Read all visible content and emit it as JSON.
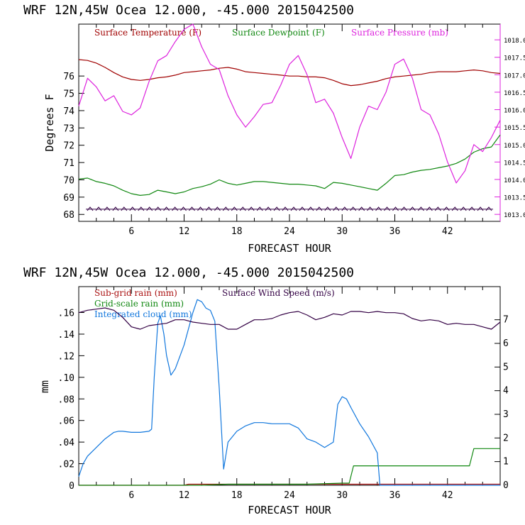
{
  "colors": {
    "temperature": "#a00000",
    "dewpoint": "#118811",
    "pressure": "#dd22dd",
    "wind_barbs": "#330044",
    "subgrid_rain": "#aa1111",
    "gridscale_rain": "#118811",
    "cloud": "#1177dd",
    "wind_speed": "#330044",
    "frame": "#000000",
    "right_axis": "#dd22dd"
  },
  "chart_data": [
    {
      "type": "line",
      "header": "WRF   12N,45W Ocea   12.000, -45.000  2015042500",
      "xlabel": "FORECAST HOUR",
      "ylabel": "Degrees F",
      "xlim": [
        0,
        48
      ],
      "ylim": [
        67.6,
        79.0
      ],
      "y2lim": [
        1012.8,
        1018.45
      ],
      "xticks": [
        6,
        12,
        18,
        24,
        30,
        36,
        42
      ],
      "xtick_labels": [
        "6",
        "12",
        "18",
        "24",
        "30",
        "36",
        "42"
      ],
      "yticks": [
        68,
        69,
        70,
        71,
        72,
        73,
        74,
        75,
        76
      ],
      "ytick_labels": [
        "68",
        "69",
        "70",
        "71",
        "72",
        "73",
        "74",
        "75",
        "76"
      ],
      "y2ticks": [
        1013.0,
        1013.5,
        1014.0,
        1014.5,
        1015.0,
        1015.5,
        1016.0,
        1016.5,
        1017.0,
        1017.5,
        1018.0
      ],
      "y2tick_labels": [
        "1013.0",
        "1013.5",
        "1014.0",
        "1014.5",
        "1015.0",
        "1015.5",
        "1016.0",
        "1016.5",
        "1017.0",
        "1017.5",
        "1018.0"
      ],
      "legend": [
        "Surface Temperature (F)",
        "Surface Dewpoint (F)",
        "Surface Pressure (mb)"
      ],
      "series": [
        {
          "name": "Surface Temperature (F)",
          "axis": "left",
          "x": [
            0,
            1,
            2,
            3,
            4,
            5,
            6,
            7,
            8,
            9,
            10,
            11,
            12,
            13,
            14,
            15,
            16,
            17,
            18,
            19,
            20,
            21,
            22,
            23,
            24,
            25,
            26,
            27,
            28,
            29,
            30,
            31,
            32,
            33,
            34,
            35,
            36,
            37,
            38,
            39,
            40,
            41,
            42,
            43,
            44,
            45,
            46,
            47,
            48
          ],
          "y": [
            76.95,
            76.9,
            76.75,
            76.5,
            76.2,
            75.95,
            75.8,
            75.75,
            75.8,
            75.9,
            75.95,
            76.05,
            76.2,
            76.25,
            76.3,
            76.35,
            76.45,
            76.5,
            76.4,
            76.25,
            76.2,
            76.15,
            76.1,
            76.05,
            76.0,
            76.0,
            75.95,
            75.95,
            75.9,
            75.75,
            75.55,
            75.45,
            75.5,
            75.6,
            75.7,
            75.85,
            75.95,
            76.0,
            76.05,
            76.1,
            76.2,
            76.25,
            76.25,
            76.25,
            76.3,
            76.35,
            76.3,
            76.2,
            76.15
          ]
        },
        {
          "name": "Surface Dewpoint (F)",
          "axis": "left",
          "x": [
            0,
            1,
            2,
            3,
            4,
            5,
            6,
            7,
            8,
            9,
            10,
            11,
            12,
            13,
            14,
            15,
            16,
            17,
            18,
            19,
            20,
            21,
            22,
            23,
            24,
            25,
            26,
            27,
            28,
            29,
            30,
            31,
            32,
            33,
            34,
            35,
            36,
            37,
            38,
            39,
            40,
            41,
            42,
            43,
            44,
            45,
            46,
            47,
            48
          ],
          "y": [
            70.05,
            70.1,
            69.9,
            69.8,
            69.65,
            69.4,
            69.2,
            69.1,
            69.15,
            69.4,
            69.3,
            69.2,
            69.3,
            69.5,
            69.6,
            69.75,
            70.0,
            69.8,
            69.7,
            69.8,
            69.9,
            69.9,
            69.85,
            69.8,
            69.75,
            69.75,
            69.7,
            69.65,
            69.5,
            69.85,
            69.8,
            69.7,
            69.6,
            69.5,
            69.4,
            69.8,
            70.25,
            70.3,
            70.45,
            70.55,
            70.6,
            70.7,
            70.8,
            70.95,
            71.2,
            71.6,
            71.8,
            71.9,
            72.6
          ]
        },
        {
          "name": "Surface Pressure (mb)",
          "axis": "right",
          "x": [
            0,
            1,
            2,
            3,
            4,
            5,
            6,
            7,
            8,
            9,
            10,
            11,
            12,
            13,
            14,
            15,
            16,
            17,
            18,
            19,
            20,
            21,
            22,
            23,
            24,
            25,
            26,
            27,
            28,
            29,
            30,
            31,
            32,
            33,
            34,
            35,
            36,
            37,
            38,
            39,
            40,
            41,
            42,
            43,
            44,
            45,
            46,
            47,
            48
          ],
          "y": [
            1016.1,
            1016.9,
            1016.65,
            1016.25,
            1016.4,
            1015.95,
            1015.85,
            1016.05,
            1016.8,
            1017.4,
            1017.55,
            1017.95,
            1018.3,
            1018.45,
            1017.8,
            1017.3,
            1017.15,
            1016.4,
            1015.85,
            1015.5,
            1015.8,
            1016.15,
            1016.2,
            1016.7,
            1017.3,
            1017.55,
            1017.0,
            1016.2,
            1016.3,
            1015.9,
            1015.2,
            1014.6,
            1015.5,
            1016.1,
            1016.0,
            1016.5,
            1017.3,
            1017.45,
            1016.9,
            1016.0,
            1015.85,
            1015.3,
            1014.5,
            1013.9,
            1014.25,
            1015.0,
            1014.8,
            1015.2,
            1015.7
          ]
        }
      ]
    },
    {
      "type": "line",
      "header": "WRF   12N,45W Ocea   12.000, -45.000  2015042500",
      "xlabel": "FORECAST HOUR",
      "ylabel": "mm",
      "xlim": [
        0,
        48
      ],
      "ylim": [
        0,
        0.184
      ],
      "y2lim": [
        0,
        8.4
      ],
      "xticks": [
        6,
        12,
        18,
        24,
        30,
        36,
        42
      ],
      "xtick_labels": [
        "6",
        "12",
        "18",
        "24",
        "30",
        "36",
        "42"
      ],
      "yticks": [
        0,
        0.02,
        0.04,
        0.06,
        0.08,
        0.1,
        0.12,
        0.14,
        0.16
      ],
      "ytick_labels": [
        "0",
        ".02",
        ".04",
        ".06",
        ".08",
        ".10",
        ".12",
        ".14",
        ".16"
      ],
      "y2ticks": [
        0,
        1,
        2,
        3,
        4,
        5,
        6,
        7
      ],
      "y2tick_labels": [
        "0",
        "1",
        "2",
        "3",
        "4",
        "5",
        "6",
        "7"
      ],
      "legend": [
        "Sub-grid rain (mm)",
        "Surface Wind Speed (m/s)",
        "Grid-scale rain (mm)",
        "Integrated cloud (mm)"
      ],
      "series": [
        {
          "name": "Sub-grid rain (mm)",
          "axis": "left",
          "x": [
            0,
            12,
            12.5,
            48
          ],
          "y": [
            0,
            0,
            0.001,
            0.001
          ]
        },
        {
          "name": "Grid-scale rain (mm)",
          "axis": "left",
          "x": [
            0,
            14,
            17,
            20,
            26,
            30,
            30.8,
            31.3,
            44.5,
            45,
            48
          ],
          "y": [
            0,
            0,
            0.001,
            0.001,
            0.001,
            0.002,
            0.002,
            0.018,
            0.018,
            0.034,
            0.034
          ]
        },
        {
          "name": "Integrated cloud (mm)",
          "axis": "left",
          "x": [
            0,
            0.5,
            1,
            2,
            3,
            4,
            4.5,
            5,
            6,
            7,
            8,
            8.3,
            8.6,
            9,
            9.3,
            9.7,
            10,
            10.5,
            11,
            12,
            13,
            13.5,
            14,
            14.5,
            15,
            15.5,
            16,
            16.5,
            17,
            18,
            19,
            20,
            21,
            22,
            23,
            24,
            25,
            26,
            27,
            28,
            29,
            29.5,
            30,
            30.5,
            31,
            32,
            33,
            34,
            34.3,
            35,
            48
          ],
          "y": [
            0.008,
            0.02,
            0.027,
            0.035,
            0.043,
            0.049,
            0.05,
            0.05,
            0.049,
            0.049,
            0.05,
            0.052,
            0.1,
            0.15,
            0.157,
            0.14,
            0.12,
            0.102,
            0.108,
            0.13,
            0.16,
            0.172,
            0.17,
            0.164,
            0.162,
            0.152,
            0.09,
            0.015,
            0.04,
            0.05,
            0.055,
            0.058,
            0.058,
            0.057,
            0.057,
            0.057,
            0.053,
            0.043,
            0.04,
            0.035,
            0.04,
            0.075,
            0.082,
            0.08,
            0.072,
            0.057,
            0.045,
            0.03,
            0.0,
            0.0,
            0.0
          ]
        },
        {
          "name": "Surface Wind Speed (m/s)",
          "axis": "right",
          "x": [
            0,
            1,
            2,
            3,
            4,
            5,
            6,
            7,
            8,
            9,
            10,
            11,
            12,
            13,
            14,
            15,
            16,
            17,
            18,
            19,
            20,
            21,
            22,
            23,
            24,
            25,
            26,
            27,
            28,
            29,
            30,
            31,
            32,
            33,
            34,
            35,
            36,
            37,
            38,
            39,
            40,
            41,
            42,
            43,
            44,
            45,
            46,
            47,
            48
          ],
          "y": [
            7.3,
            7.4,
            7.45,
            7.5,
            7.4,
            7.1,
            6.7,
            6.6,
            6.75,
            6.8,
            6.85,
            7.0,
            7.0,
            6.9,
            6.85,
            6.8,
            6.8,
            6.6,
            6.6,
            6.8,
            7.0,
            7.0,
            7.05,
            7.2,
            7.3,
            7.35,
            7.2,
            7.0,
            7.1,
            7.25,
            7.2,
            7.35,
            7.35,
            7.3,
            7.35,
            7.3,
            7.3,
            7.25,
            7.05,
            6.95,
            7.0,
            6.95,
            6.8,
            6.85,
            6.8,
            6.8,
            6.7,
            6.6,
            6.9
          ]
        }
      ]
    }
  ],
  "wind_barbs": {
    "level": 68.3,
    "count": 48
  }
}
